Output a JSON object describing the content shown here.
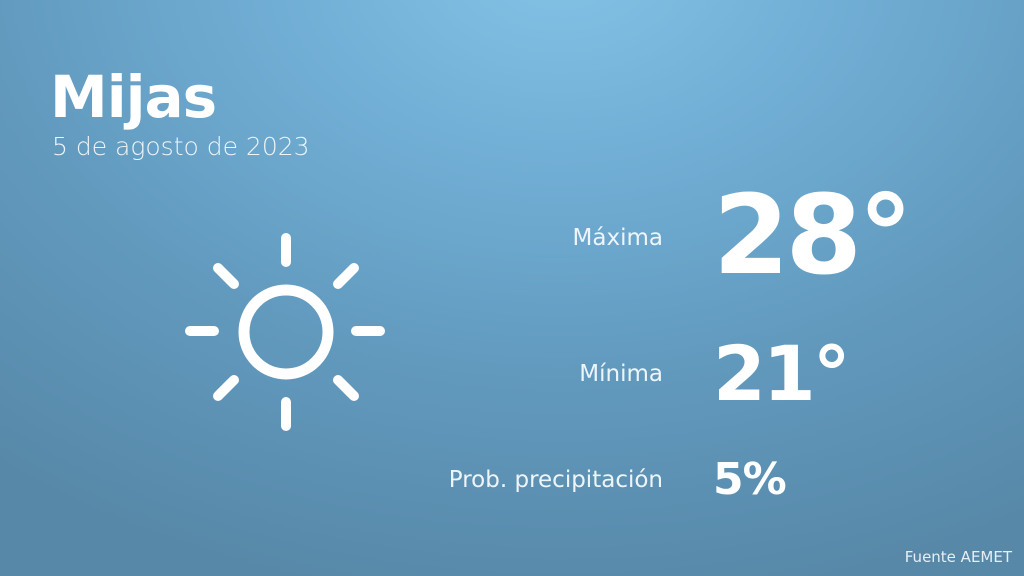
{
  "location": {
    "city": "Mijas",
    "date": "5 de agosto de 2023"
  },
  "forecast": {
    "condition_icon": "sun-icon",
    "max_label": "Máxima",
    "max_value": "28°",
    "min_label": "Mínima",
    "min_value": "21°",
    "precip_label": "Prob. precipitación",
    "precip_value": "5%"
  },
  "footer": {
    "source": "Fuente AEMET"
  },
  "colors": {
    "background_top": "#84c3e6",
    "background_bottom": "#5788a8",
    "text": "#ffffff"
  }
}
